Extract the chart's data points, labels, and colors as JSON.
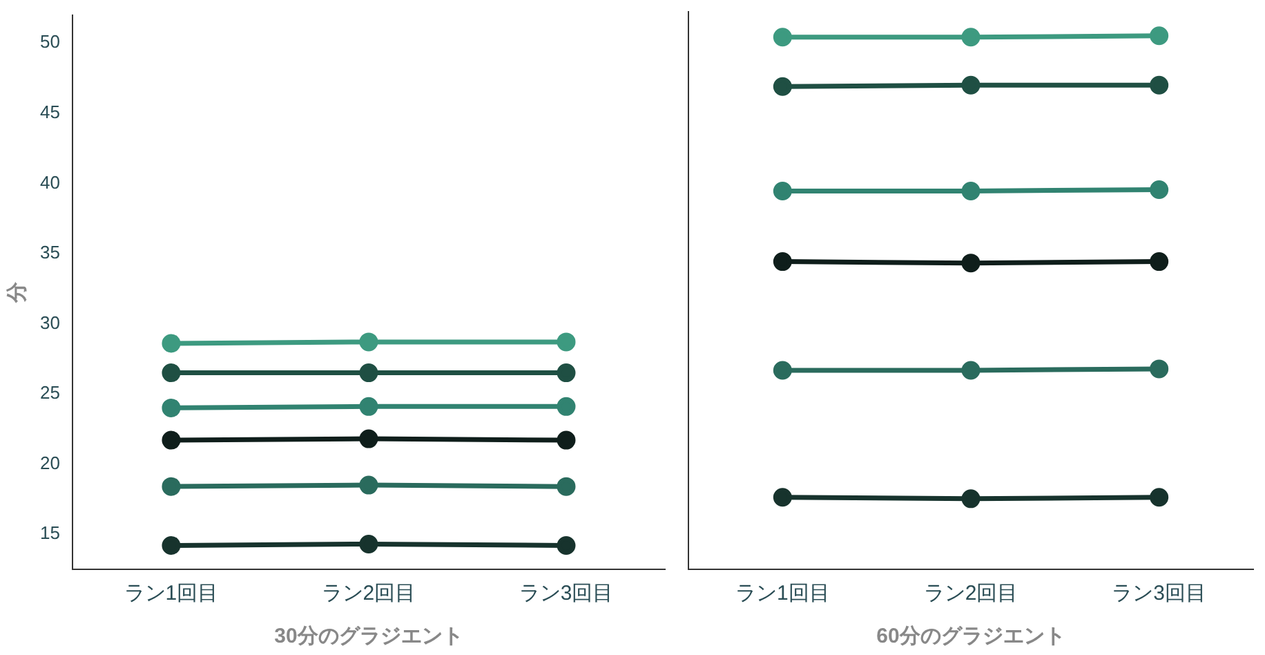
{
  "chart_data": [
    {
      "type": "line",
      "xlabel": "30分のグラジエント",
      "ylabel": "分",
      "categories": [
        "ラン1回目",
        "ラン2回目",
        "ラン3回目"
      ],
      "ylim": [
        12.5,
        52
      ],
      "yticks": [
        15,
        20,
        25,
        30,
        35,
        40,
        45,
        50
      ],
      "grid": false,
      "legend": false,
      "marker": "circle",
      "line_style": "solid",
      "series": [
        {
          "color": "#3d9a80",
          "values": [
            28.6,
            28.7,
            28.7
          ]
        },
        {
          "color": "#1f4f43",
          "values": [
            26.5,
            26.5,
            26.5
          ]
        },
        {
          "color": "#318371",
          "values": [
            24.0,
            24.1,
            24.1
          ]
        },
        {
          "color": "#0f1e1b",
          "values": [
            21.7,
            21.8,
            21.7
          ]
        },
        {
          "color": "#2a6b5d",
          "values": [
            18.4,
            18.5,
            18.4
          ]
        },
        {
          "color": "#17332d",
          "values": [
            14.2,
            14.3,
            14.2
          ]
        }
      ]
    },
    {
      "type": "line",
      "xlabel": "60分のグラジエント",
      "categories": [
        "ラン1回目",
        "ラン2回目",
        "ラン3回目"
      ],
      "ylim": [
        12.5,
        52
      ],
      "yticks": [
        15,
        20,
        25,
        30,
        35,
        40,
        45,
        50
      ],
      "tick_labels": "x",
      "grid": false,
      "legend": false,
      "marker": "circle",
      "line_style": "solid",
      "series": [
        {
          "color": "#3d9a80",
          "values": [
            50.2,
            50.2,
            50.3
          ]
        },
        {
          "color": "#1f4f43",
          "values": [
            46.7,
            46.8,
            46.8
          ]
        },
        {
          "color": "#318371",
          "values": [
            39.3,
            39.3,
            39.4
          ]
        },
        {
          "color": "#0f1e1b",
          "values": [
            34.3,
            34.2,
            34.3
          ]
        },
        {
          "color": "#2a6b5d",
          "values": [
            26.6,
            26.6,
            26.7
          ]
        },
        {
          "color": "#17332d",
          "values": [
            17.6,
            17.5,
            17.6
          ]
        }
      ]
    }
  ]
}
